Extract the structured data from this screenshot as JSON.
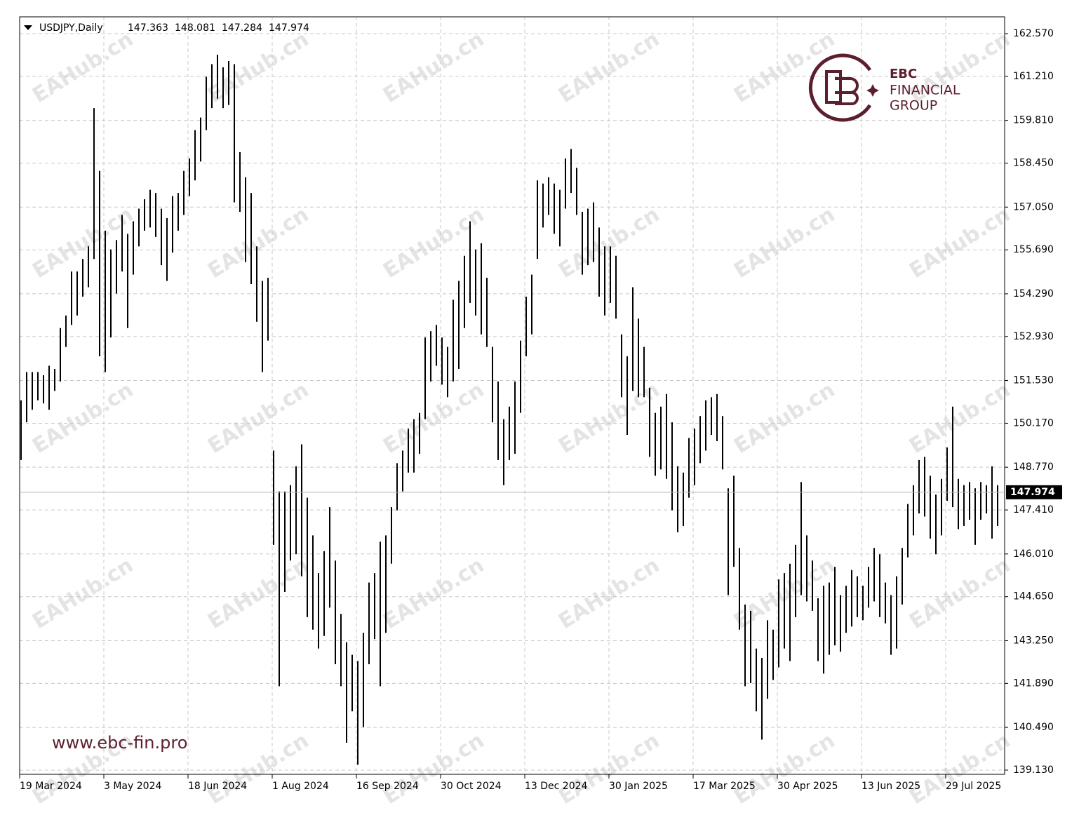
{
  "chart_data": {
    "type": "ohlc",
    "header": {
      "symbol": "USDJPY,Daily",
      "open": "147.363",
      "high": "148.081",
      "low": "147.284",
      "close": "147.974"
    },
    "last_price": {
      "value": 147.974,
      "label": "147.974"
    },
    "brand": {
      "name": "EBC",
      "line1": "FINANCIAL",
      "line2": "GROUP",
      "url": "www.ebc-fin.pro"
    },
    "watermark": "EAHub.cn",
    "color": "#000000",
    "grid": true,
    "ylim": [
      138.996,
      163.106
    ],
    "yticks": [
      {
        "value": 162.57,
        "label": "162.570"
      },
      {
        "value": 161.21,
        "label": "161.210"
      },
      {
        "value": 159.81,
        "label": "159.810"
      },
      {
        "value": 158.45,
        "label": "158.450"
      },
      {
        "value": 157.05,
        "label": "157.050"
      },
      {
        "value": 155.69,
        "label": "155.690"
      },
      {
        "value": 154.29,
        "label": "154.290"
      },
      {
        "value": 152.93,
        "label": "152.930"
      },
      {
        "value": 151.53,
        "label": "151.530"
      },
      {
        "value": 150.17,
        "label": "150.170"
      },
      {
        "value": 148.77,
        "label": "148.770"
      },
      {
        "value": 147.41,
        "label": "147.410"
      },
      {
        "value": 146.01,
        "label": "146.010"
      },
      {
        "value": 144.65,
        "label": "144.650"
      },
      {
        "value": 143.25,
        "label": "143.250"
      },
      {
        "value": 141.89,
        "label": "141.890"
      },
      {
        "value": 140.49,
        "label": "140.490"
      },
      {
        "value": 139.13,
        "label": "139.130"
      }
    ],
    "categories": [
      "19 Mar 2024",
      null,
      null,
      null,
      null,
      null,
      null,
      null,
      null,
      null,
      null,
      null,
      null,
      null,
      null,
      "3 May 2024",
      null,
      null,
      null,
      null,
      null,
      null,
      null,
      null,
      null,
      null,
      null,
      null,
      null,
      null,
      "18 Jun 2024",
      null,
      null,
      null,
      null,
      null,
      null,
      null,
      null,
      null,
      null,
      null,
      null,
      null,
      null,
      "1 Aug 2024",
      null,
      null,
      null,
      null,
      null,
      null,
      null,
      null,
      null,
      null,
      null,
      null,
      null,
      null,
      "16 Sep 2024",
      null,
      null,
      null,
      null,
      null,
      null,
      null,
      null,
      null,
      null,
      null,
      null,
      null,
      null,
      "30 Oct 2024",
      null,
      null,
      null,
      null,
      null,
      null,
      null,
      null,
      null,
      null,
      null,
      null,
      null,
      null,
      "13 Dec 2024",
      null,
      null,
      null,
      null,
      null,
      null,
      null,
      null,
      null,
      null,
      null,
      null,
      null,
      null,
      "30 Jan 2025",
      null,
      null,
      null,
      null,
      null,
      null,
      null,
      null,
      null,
      null,
      null,
      null,
      null,
      null,
      "17 Mar 2025",
      null,
      null,
      null,
      null,
      null,
      null,
      null,
      null,
      null,
      null,
      null,
      null,
      null,
      null,
      "30 Apr 2025",
      null,
      null,
      null,
      null,
      null,
      null,
      null,
      null,
      null,
      null,
      null,
      null,
      null,
      null,
      "13 Jun 2025",
      null,
      null,
      null,
      null,
      null,
      null,
      null,
      null,
      null,
      null,
      null,
      null,
      null,
      null,
      "29 Jul 2025",
      null,
      null,
      null,
      null,
      null,
      null,
      null,
      null,
      null
    ],
    "low": [
      149.0,
      150.2,
      150.6,
      150.9,
      150.8,
      150.6,
      151.2,
      151.5,
      152.6,
      153.3,
      153.6,
      154.2,
      154.5,
      155.4,
      152.3,
      151.8,
      152.9,
      154.3,
      155.0,
      153.2,
      154.9,
      155.8,
      156.3,
      156.4,
      156.1,
      155.2,
      154.7,
      155.6,
      156.3,
      156.8,
      157.4,
      157.9,
      158.5,
      159.5,
      160.2,
      160.5,
      160.2,
      160.3,
      157.2,
      156.9,
      155.3,
      154.6,
      153.4,
      151.8,
      152.8,
      146.3,
      141.8,
      144.8,
      145.8,
      146.0,
      145.3,
      144.0,
      143.6,
      143.0,
      143.4,
      144.3,
      142.5,
      141.8,
      140.0,
      141.0,
      139.3,
      140.5,
      142.5,
      143.3,
      141.8,
      143.5,
      145.7,
      147.4,
      148.0,
      148.6,
      148.6,
      149.2,
      150.3,
      151.5,
      152.0,
      151.4,
      151.0,
      151.5,
      151.9,
      153.2,
      154.0,
      153.6,
      153.0,
      152.6,
      150.2,
      149.0,
      148.2,
      149.0,
      149.2,
      150.5,
      152.3,
      153.0,
      155.4,
      156.4,
      156.8,
      156.2,
      155.8,
      157.0,
      157.5,
      156.8,
      154.9,
      155.2,
      155.3,
      154.2,
      153.6,
      154.0,
      153.5,
      151.0,
      149.8,
      151.2,
      151.0,
      151.0,
      149.1,
      148.5,
      148.7,
      148.4,
      147.4,
      146.7,
      146.9,
      147.8,
      148.2,
      148.9,
      149.3,
      149.8,
      149.6,
      148.7,
      144.7,
      145.6,
      143.6,
      141.8,
      141.9,
      141.0,
      140.1,
      141.4,
      142.0,
      142.4,
      143.0,
      142.6,
      144.0,
      144.7,
      144.5,
      144.2,
      142.6,
      142.2,
      142.8,
      143.1,
      142.9,
      143.5,
      143.7,
      144.0,
      143.9,
      144.3,
      144.5,
      144.0,
      143.8,
      142.8,
      143.0,
      144.4,
      145.9,
      146.6,
      147.3,
      147.2,
      146.5,
      146.0,
      146.6,
      147.7,
      147.5,
      146.8,
      146.9,
      147.1,
      146.3,
      147.1,
      147.3,
      146.5,
      146.9
    ],
    "high": [
      150.9,
      151.8,
      151.8,
      151.8,
      151.7,
      152.0,
      151.9,
      153.2,
      153.6,
      155.0,
      155.0,
      155.4,
      155.8,
      160.2,
      158.2,
      156.3,
      155.7,
      156.0,
      156.8,
      156.2,
      156.6,
      157.0,
      157.3,
      157.6,
      157.5,
      157.0,
      156.7,
      157.4,
      157.5,
      158.2,
      158.6,
      159.5,
      159.9,
      161.2,
      161.6,
      161.9,
      161.5,
      161.7,
      161.6,
      158.8,
      158.0,
      157.5,
      155.8,
      154.7,
      154.8,
      149.3,
      148.0,
      148.0,
      148.2,
      148.8,
      149.5,
      147.8,
      146.6,
      145.4,
      146.1,
      147.5,
      145.8,
      144.1,
      143.2,
      142.8,
      142.6,
      143.5,
      145.1,
      145.4,
      146.4,
      146.6,
      147.5,
      148.9,
      149.3,
      150.0,
      150.3,
      150.5,
      152.9,
      153.1,
      153.3,
      152.9,
      152.6,
      154.1,
      154.7,
      155.5,
      156.6,
      155.7,
      155.9,
      154.8,
      152.6,
      151.5,
      150.3,
      150.7,
      151.5,
      152.8,
      154.2,
      154.9,
      157.9,
      157.8,
      158.0,
      157.8,
      157.6,
      158.6,
      158.9,
      158.3,
      156.9,
      157.0,
      157.2,
      156.4,
      155.8,
      155.8,
      155.5,
      153.0,
      152.3,
      154.5,
      153.5,
      152.6,
      151.3,
      150.5,
      150.7,
      151.1,
      150.2,
      148.8,
      148.6,
      149.7,
      150.0,
      150.4,
      150.9,
      151.0,
      151.1,
      150.4,
      148.1,
      148.5,
      146.2,
      144.4,
      144.2,
      143.0,
      142.7,
      143.9,
      143.6,
      145.2,
      145.4,
      145.7,
      146.3,
      148.3,
      146.6,
      145.8,
      144.6,
      145.0,
      145.1,
      145.6,
      144.7,
      145.0,
      145.5,
      145.3,
      145.0,
      145.6,
      146.2,
      146.0,
      145.1,
      144.7,
      145.3,
      146.2,
      147.6,
      148.2,
      149.0,
      149.1,
      148.5,
      147.9,
      148.4,
      149.4,
      150.7,
      148.4,
      148.2,
      148.3,
      148.1,
      148.3,
      148.2,
      148.8,
      148.2
    ]
  }
}
